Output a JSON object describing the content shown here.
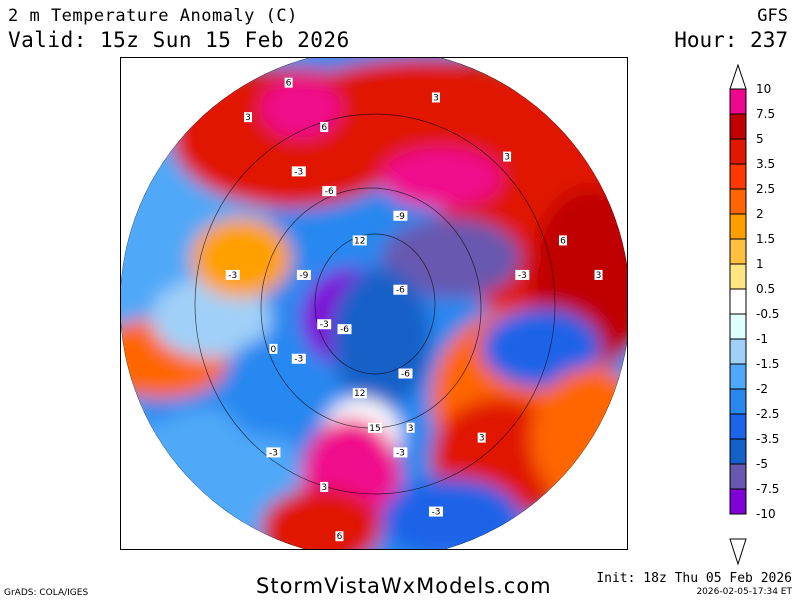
{
  "header": {
    "title": "2 m Temperature Anomaly (C)",
    "valid": "Valid: 15z Sun 15 Feb 2026",
    "model": "GFS",
    "hour": "Hour: 237"
  },
  "colorbar": {
    "labels": [
      "10",
      "7.5",
      "5",
      "3.5",
      "2.5",
      "2",
      "1.5",
      "1",
      "0.5",
      "-0.5",
      "-1",
      "-1.5",
      "-2",
      "-2.5",
      "-3.5",
      "-5",
      "-7.5",
      "-10"
    ],
    "colors": [
      "#f0088c",
      "#c00000",
      "#e01800",
      "#ff3800",
      "#ff6600",
      "#ffa000",
      "#ffc040",
      "#ffe680",
      "#ffffff",
      "#e0ffff",
      "#a0d0f8",
      "#50a8f8",
      "#2888f0",
      "#1c64e8",
      "#1460c8",
      "#6858b0",
      "#8000d8"
    ]
  },
  "map_labels": [
    {
      "t": "6",
      "lon": 0.33,
      "lat": 0.05
    },
    {
      "t": "3",
      "lon": 0.25,
      "lat": 0.12
    },
    {
      "t": "6",
      "lon": 0.4,
      "lat": 0.14
    },
    {
      "t": "3",
      "lon": 0.62,
      "lat": 0.08
    },
    {
      "t": "-3",
      "lon": 0.35,
      "lat": 0.23
    },
    {
      "t": "-6",
      "lon": 0.41,
      "lat": 0.27
    },
    {
      "t": "12",
      "lon": 0.47,
      "lat": 0.37
    },
    {
      "t": "-9",
      "lon": 0.55,
      "lat": 0.32
    },
    {
      "t": "-3",
      "lon": 0.22,
      "lat": 0.44
    },
    {
      "t": "-9",
      "lon": 0.36,
      "lat": 0.44
    },
    {
      "t": "-6",
      "lon": 0.55,
      "lat": 0.47
    },
    {
      "t": "-3",
      "lon": 0.79,
      "lat": 0.44
    },
    {
      "t": "3",
      "lon": 0.94,
      "lat": 0.44
    },
    {
      "t": "-3",
      "lon": 0.4,
      "lat": 0.54
    },
    {
      "t": "-6",
      "lon": 0.44,
      "lat": 0.55
    },
    {
      "t": "-3",
      "lon": 0.35,
      "lat": 0.61
    },
    {
      "t": "-6",
      "lon": 0.56,
      "lat": 0.64
    },
    {
      "t": "0",
      "lon": 0.3,
      "lat": 0.59
    },
    {
      "t": "12",
      "lon": 0.47,
      "lat": 0.68
    },
    {
      "t": "15",
      "lon": 0.5,
      "lat": 0.75
    },
    {
      "t": "3",
      "lon": 0.57,
      "lat": 0.75
    },
    {
      "t": "-3",
      "lon": 0.55,
      "lat": 0.8
    },
    {
      "t": "-3",
      "lon": 0.3,
      "lat": 0.8
    },
    {
      "t": "3",
      "lon": 0.4,
      "lat": 0.87
    },
    {
      "t": "-3",
      "lon": 0.62,
      "lat": 0.92
    },
    {
      "t": "6",
      "lon": 0.43,
      "lat": 0.97
    },
    {
      "t": "3",
      "lon": 0.71,
      "lat": 0.77
    },
    {
      "t": "6",
      "lon": 0.87,
      "lat": 0.37
    },
    {
      "t": "3",
      "lon": 0.76,
      "lat": 0.2
    }
  ],
  "footer": {
    "grads": "GrADS: COLA/IGES",
    "site": "StormVistaWxModels.com",
    "init": "Init: 18z Thu 05 Feb 2026",
    "stamp": "2026-02-05-17:34 ET"
  }
}
